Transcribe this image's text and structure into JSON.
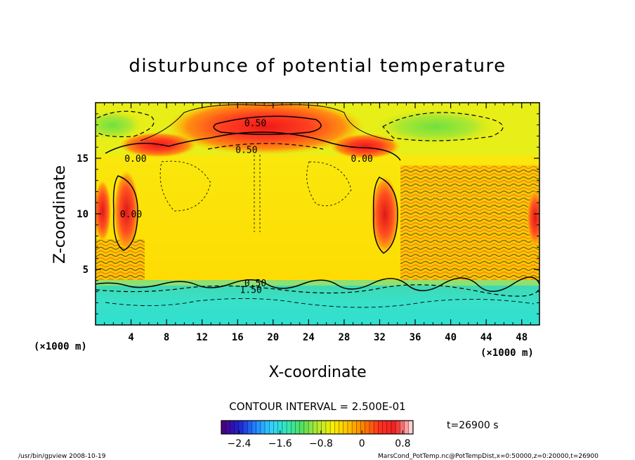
{
  "chart_data": {
    "type": "heatmap",
    "title": "disturbunce of potential temperature",
    "xlabel": "X-coordinate",
    "ylabel": "Z-coordinate",
    "x_unit": "(×1000 m)",
    "y_unit": "(×1000 m)",
    "xlim": [
      0,
      50
    ],
    "ylim": [
      0,
      20
    ],
    "x_ticks": [
      4,
      8,
      12,
      16,
      20,
      24,
      28,
      32,
      36,
      40,
      44,
      48
    ],
    "y_ticks": [
      5,
      10,
      15
    ],
    "contour_interval": "CONTOUR INTERVAL = 2.500E-01",
    "time_label": "t=26900 s",
    "colorbar": {
      "range": [
        -2.75,
        1.0
      ],
      "ticks": [
        -2.4,
        -1.6,
        -0.8,
        0,
        0.8
      ],
      "tick_labels": [
        "−2.4",
        "−1.6",
        "−0.8",
        "0",
        "0.8"
      ],
      "colors": [
        "#4b0082",
        "#2020d0",
        "#2080ff",
        "#30d0ff",
        "#30e8c0",
        "#50e060",
        "#b0e830",
        "#f8f000",
        "#ffc000",
        "#ff8000",
        "#ff3020",
        "#f02020",
        "#ffd0d0"
      ]
    },
    "contour_labels": [
      {
        "x": 18.0,
        "y": 18.2,
        "text": "0.50"
      },
      {
        "x": 17.0,
        "y": 15.8,
        "text": "0.50"
      },
      {
        "x": 4.5,
        "y": 15.0,
        "text": "0.00"
      },
      {
        "x": 30.0,
        "y": 15.0,
        "text": "0.00"
      },
      {
        "x": 4.0,
        "y": 10.0,
        "text": "0.00"
      },
      {
        "x": 18.0,
        "y": 3.8,
        "text": "0.50"
      },
      {
        "x": 17.5,
        "y": 3.2,
        "text": "1.50"
      }
    ],
    "regions": [
      {
        "name": "lower-layer",
        "z_range": [
          0,
          3.8
        ],
        "value": -1.6
      },
      {
        "name": "interior",
        "z_range": [
          3.8,
          15.5
        ],
        "value": 0.3
      },
      {
        "name": "upper-layer",
        "z_range": [
          15.5,
          20
        ],
        "value": 0.1
      },
      {
        "name": "top-warm-core",
        "x": 18,
        "z": 18.2,
        "value": 0.7
      },
      {
        "name": "left-warm-column",
        "x": 3.5,
        "z": 10,
        "value": 0.8
      },
      {
        "name": "right-warm-column",
        "x": 32.5,
        "z": 9.5,
        "value": 0.8
      }
    ]
  },
  "footer": {
    "left": "/usr/bin/gpview   2008-10-19",
    "right": "MarsCond_PotTemp.nc@PotTempDist,x=0:50000,z=0:20000,t=26900"
  }
}
